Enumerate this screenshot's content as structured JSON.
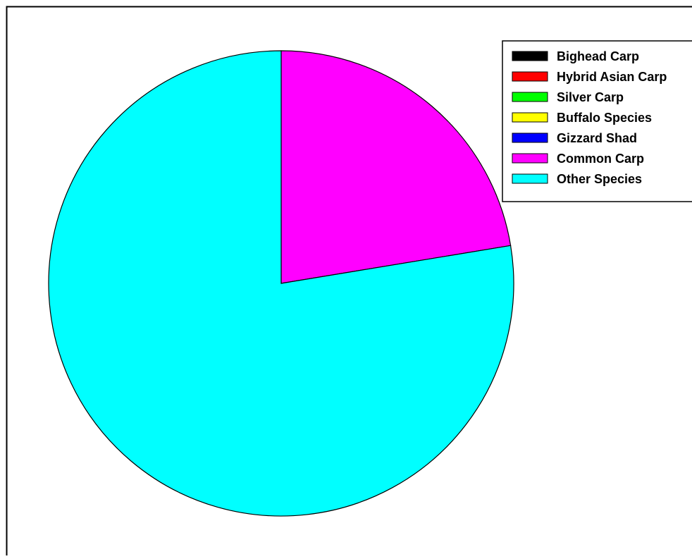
{
  "chart_data": {
    "type": "pie",
    "title": "",
    "legend_position": "top-right",
    "start_angle_deg": 0,
    "direction": "clockwise",
    "slices": [
      {
        "label": "Bighead Carp",
        "value": 0,
        "color": "#000000"
      },
      {
        "label": "Hybrid Asian Carp",
        "value": 0,
        "color": "#ff0000"
      },
      {
        "label": "Silver Carp",
        "value": 0,
        "color": "#00ff00"
      },
      {
        "label": "Buffalo Species",
        "value": 0,
        "color": "#ffff00"
      },
      {
        "label": "Gizzard Shad",
        "value": 0,
        "color": "#0000ff"
      },
      {
        "label": "Common Carp",
        "value": 22.4,
        "color": "#ff00ff"
      },
      {
        "label": "Other Species",
        "value": 77.6,
        "color": "#00ffff"
      }
    ]
  }
}
